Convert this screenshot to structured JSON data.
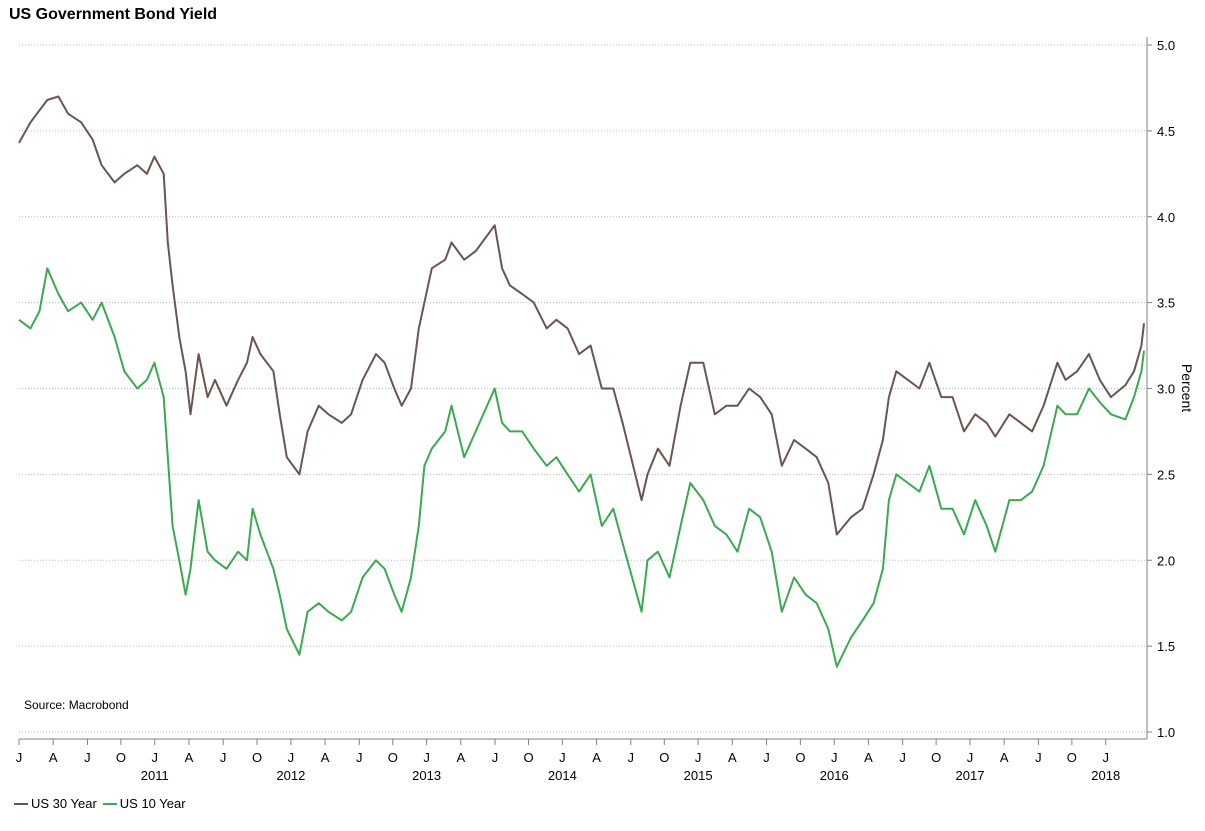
{
  "chart_data": {
    "type": "line",
    "title": "US Government Bond Yield",
    "ylabel": "Percent",
    "source": "Source: Macrobond",
    "ylim": [
      1.0,
      5.0
    ],
    "y_ticks": [
      "1.0",
      "1.5",
      "2.0",
      "2.5",
      "3.0",
      "3.5",
      "4.0",
      "4.5",
      "5.0"
    ],
    "x_range": [
      "2010-07-01",
      "2018-10-20"
    ],
    "month_ticks": [
      "J",
      "A",
      "J",
      "O",
      "J",
      "A",
      "J",
      "O",
      "J",
      "A",
      "J",
      "O",
      "J",
      "A",
      "J",
      "O",
      "J",
      "A",
      "J",
      "O",
      "J",
      "A",
      "J",
      "O",
      "J",
      "A",
      "J",
      "O",
      "J",
      "A",
      "J",
      "O",
      "J"
    ],
    "year_labels": [
      "2011",
      "2012",
      "2013",
      "2014",
      "2015",
      "2016",
      "2017",
      "2018"
    ],
    "grid": true,
    "legend_position": "bottom-left",
    "colors": {
      "us30": "#6b5451",
      "us10": "#3aaa51",
      "grid": "#b9b9b9",
      "axis": "#808080"
    },
    "series": [
      {
        "name": "US 30 Year",
        "color": "#6b5451",
        "x": [
          "2010-07-01",
          "2010-08-01",
          "2010-08-25",
          "2010-09-15",
          "2010-10-15",
          "2010-11-10",
          "2010-12-15",
          "2011-01-15",
          "2011-02-08",
          "2011-03-15",
          "2011-04-10",
          "2011-05-15",
          "2011-06-10",
          "2011-06-30",
          "2011-07-25",
          "2011-08-05",
          "2011-08-18",
          "2011-09-05",
          "2011-09-22",
          "2011-10-05",
          "2011-10-27",
          "2011-11-20",
          "2011-12-10",
          "2012-01-10",
          "2012-02-10",
          "2012-03-05",
          "2012-03-20",
          "2012-04-10",
          "2012-05-15",
          "2012-06-01",
          "2012-06-20",
          "2012-07-24",
          "2012-08-15",
          "2012-09-14",
          "2012-10-10",
          "2012-11-15",
          "2012-12-10",
          "2013-01-10",
          "2013-02-15",
          "2013-03-10",
          "2013-04-05",
          "2013-04-25",
          "2013-05-20",
          "2013-06-10",
          "2013-06-25",
          "2013-07-15",
          "2013-08-20",
          "2013-09-06",
          "2013-10-10",
          "2013-11-10",
          "2013-12-31",
          "2014-01-20",
          "2014-02-10",
          "2014-03-15",
          "2014-04-15",
          "2014-05-20",
          "2014-06-15",
          "2014-07-15",
          "2014-08-15",
          "2014-09-15",
          "2014-10-15",
          "2014-11-15",
          "2014-12-10",
          "2015-01-30",
          "2015-02-15",
          "2015-03-15",
          "2015-04-15",
          "2015-05-15",
          "2015-06-10",
          "2015-07-15",
          "2015-08-15",
          "2015-09-15",
          "2015-10-15",
          "2015-11-15",
          "2015-12-15",
          "2016-01-15",
          "2016-02-11",
          "2016-03-15",
          "2016-04-15",
          "2016-05-15",
          "2016-06-15",
          "2016-07-08",
          "2016-08-15",
          "2016-09-15",
          "2016-10-15",
          "2016-11-09",
          "2016-11-25",
          "2016-12-15",
          "2017-01-15",
          "2017-02-15",
          "2017-03-14",
          "2017-04-15",
          "2017-05-15",
          "2017-06-15",
          "2017-07-15",
          "2017-08-15",
          "2017-09-07",
          "2017-10-15",
          "2017-11-15",
          "2017-12-15",
          "2018-01-15",
          "2018-02-21",
          "2018-03-15",
          "2018-04-15",
          "2018-05-17",
          "2018-06-15",
          "2018-07-15",
          "2018-08-23",
          "2018-09-15",
          "2018-10-05",
          "2018-10-12"
        ],
        "values": [
          4.43,
          4.55,
          4.62,
          4.68,
          4.7,
          4.6,
          4.55,
          4.45,
          4.3,
          4.2,
          4.25,
          4.3,
          4.25,
          4.35,
          4.25,
          3.85,
          3.6,
          3.3,
          3.1,
          2.85,
          3.2,
          2.95,
          3.05,
          2.9,
          3.05,
          3.15,
          3.3,
          3.2,
          3.1,
          2.85,
          2.6,
          2.5,
          2.75,
          2.9,
          2.85,
          2.8,
          2.85,
          3.05,
          3.2,
          3.15,
          3.0,
          2.9,
          3.0,
          3.35,
          3.5,
          3.7,
          3.75,
          3.85,
          3.75,
          3.8,
          3.95,
          3.7,
          3.6,
          3.55,
          3.5,
          3.35,
          3.4,
          3.35,
          3.2,
          3.25,
          3.0,
          3.0,
          2.8,
          2.35,
          2.5,
          2.65,
          2.55,
          2.9,
          3.15,
          3.15,
          2.85,
          2.9,
          2.9,
          3.0,
          2.95,
          2.85,
          2.55,
          2.7,
          2.65,
          2.6,
          2.45,
          2.15,
          2.25,
          2.3,
          2.5,
          2.7,
          2.95,
          3.1,
          3.05,
          3.0,
          3.15,
          2.95,
          2.95,
          2.75,
          2.85,
          2.8,
          2.72,
          2.85,
          2.8,
          2.75,
          2.9,
          3.15,
          3.05,
          3.1,
          3.2,
          3.05,
          2.95,
          3.02,
          3.1,
          3.25,
          3.38
        ]
      },
      {
        "name": "US 10 Year",
        "color": "#3aaa51",
        "x": [
          "2010-07-01",
          "2010-08-01",
          "2010-08-25",
          "2010-09-15",
          "2010-10-15",
          "2010-11-10",
          "2010-12-15",
          "2011-01-15",
          "2011-02-08",
          "2011-03-15",
          "2011-04-10",
          "2011-05-15",
          "2011-06-10",
          "2011-06-30",
          "2011-07-25",
          "2011-08-05",
          "2011-08-18",
          "2011-09-05",
          "2011-09-22",
          "2011-10-05",
          "2011-10-27",
          "2011-11-20",
          "2011-12-10",
          "2012-01-10",
          "2012-02-10",
          "2012-03-05",
          "2012-03-20",
          "2012-04-10",
          "2012-05-15",
          "2012-06-01",
          "2012-06-20",
          "2012-07-24",
          "2012-08-15",
          "2012-09-14",
          "2012-10-10",
          "2012-11-15",
          "2012-12-10",
          "2013-01-10",
          "2013-02-15",
          "2013-03-10",
          "2013-04-05",
          "2013-04-25",
          "2013-05-20",
          "2013-06-10",
          "2013-06-25",
          "2013-07-15",
          "2013-08-20",
          "2013-09-06",
          "2013-10-10",
          "2013-11-10",
          "2013-12-31",
          "2014-01-20",
          "2014-02-10",
          "2014-03-15",
          "2014-04-15",
          "2014-05-20",
          "2014-06-15",
          "2014-07-15",
          "2014-08-15",
          "2014-09-15",
          "2014-10-15",
          "2014-11-15",
          "2014-12-10",
          "2015-01-30",
          "2015-02-15",
          "2015-03-15",
          "2015-04-15",
          "2015-05-15",
          "2015-06-10",
          "2015-07-15",
          "2015-08-15",
          "2015-09-15",
          "2015-10-15",
          "2015-11-15",
          "2015-12-15",
          "2016-01-15",
          "2016-02-11",
          "2016-03-15",
          "2016-04-15",
          "2016-05-15",
          "2016-06-15",
          "2016-07-08",
          "2016-08-15",
          "2016-09-15",
          "2016-10-15",
          "2016-11-09",
          "2016-11-25",
          "2016-12-15",
          "2017-01-15",
          "2017-02-15",
          "2017-03-14",
          "2017-04-15",
          "2017-05-15",
          "2017-06-15",
          "2017-07-15",
          "2017-08-15",
          "2017-09-07",
          "2017-10-15",
          "2017-11-15",
          "2017-12-15",
          "2018-01-15",
          "2018-02-21",
          "2018-03-15",
          "2018-04-15",
          "2018-05-17",
          "2018-06-15",
          "2018-07-15",
          "2018-08-23",
          "2018-09-15",
          "2018-10-05",
          "2018-10-12"
        ],
        "values": [
          3.4,
          3.35,
          3.45,
          3.7,
          3.55,
          3.45,
          3.5,
          3.4,
          3.5,
          3.3,
          3.1,
          3.0,
          3.05,
          3.15,
          2.95,
          2.6,
          2.2,
          2.0,
          1.8,
          1.95,
          2.35,
          2.05,
          2.0,
          1.95,
          2.05,
          2.0,
          2.3,
          2.15,
          1.95,
          1.8,
          1.6,
          1.45,
          1.7,
          1.75,
          1.7,
          1.65,
          1.7,
          1.9,
          2.0,
          1.95,
          1.8,
          1.7,
          1.9,
          2.2,
          2.55,
          2.65,
          2.75,
          2.9,
          2.6,
          2.75,
          3.0,
          2.8,
          2.75,
          2.75,
          2.65,
          2.55,
          2.6,
          2.5,
          2.4,
          2.5,
          2.2,
          2.3,
          2.1,
          1.7,
          2.0,
          2.05,
          1.9,
          2.2,
          2.45,
          2.35,
          2.2,
          2.15,
          2.05,
          2.3,
          2.25,
          2.05,
          1.7,
          1.9,
          1.8,
          1.75,
          1.6,
          1.38,
          1.55,
          1.65,
          1.75,
          1.95,
          2.35,
          2.5,
          2.45,
          2.4,
          2.55,
          2.3,
          2.3,
          2.15,
          2.35,
          2.2,
          2.05,
          2.35,
          2.35,
          2.4,
          2.55,
          2.9,
          2.85,
          2.85,
          3.0,
          2.92,
          2.85,
          2.82,
          2.95,
          3.1,
          3.22
        ]
      }
    ]
  }
}
